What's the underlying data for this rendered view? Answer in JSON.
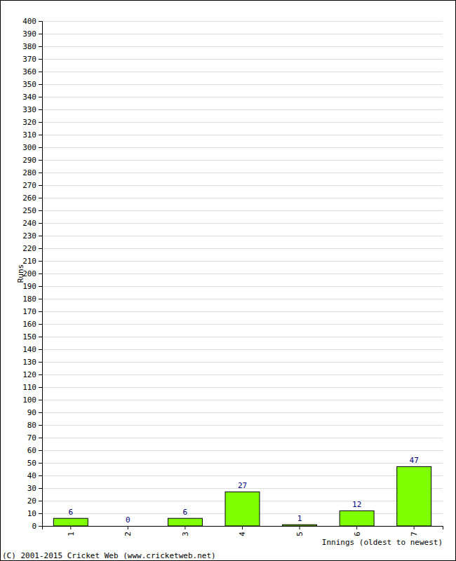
{
  "chart_data": {
    "type": "bar",
    "y_label": "Runs",
    "x_label": "Innings (oldest to newest)",
    "annotations": [
      "(C) 2001-2015 Cricket Web (www.cricketweb.net)"
    ],
    "categories": [
      "1",
      "2",
      "3",
      "4",
      "5",
      "6",
      "7"
    ],
    "values": [
      6,
      0,
      6,
      27,
      1,
      12,
      47
    ],
    "color": "#80ff00",
    "ylim": [
      0,
      400
    ],
    "yticks": [
      0,
      10,
      20,
      30,
      40,
      50,
      60,
      70,
      80,
      90,
      100,
      110,
      120,
      130,
      140,
      150,
      160,
      170,
      180,
      190,
      200,
      210,
      220,
      230,
      240,
      250,
      260,
      270,
      280,
      290,
      300,
      310,
      320,
      330,
      340,
      350,
      360,
      370,
      380,
      390,
      400
    ],
    "grid": true,
    "data_labels": true
  }
}
